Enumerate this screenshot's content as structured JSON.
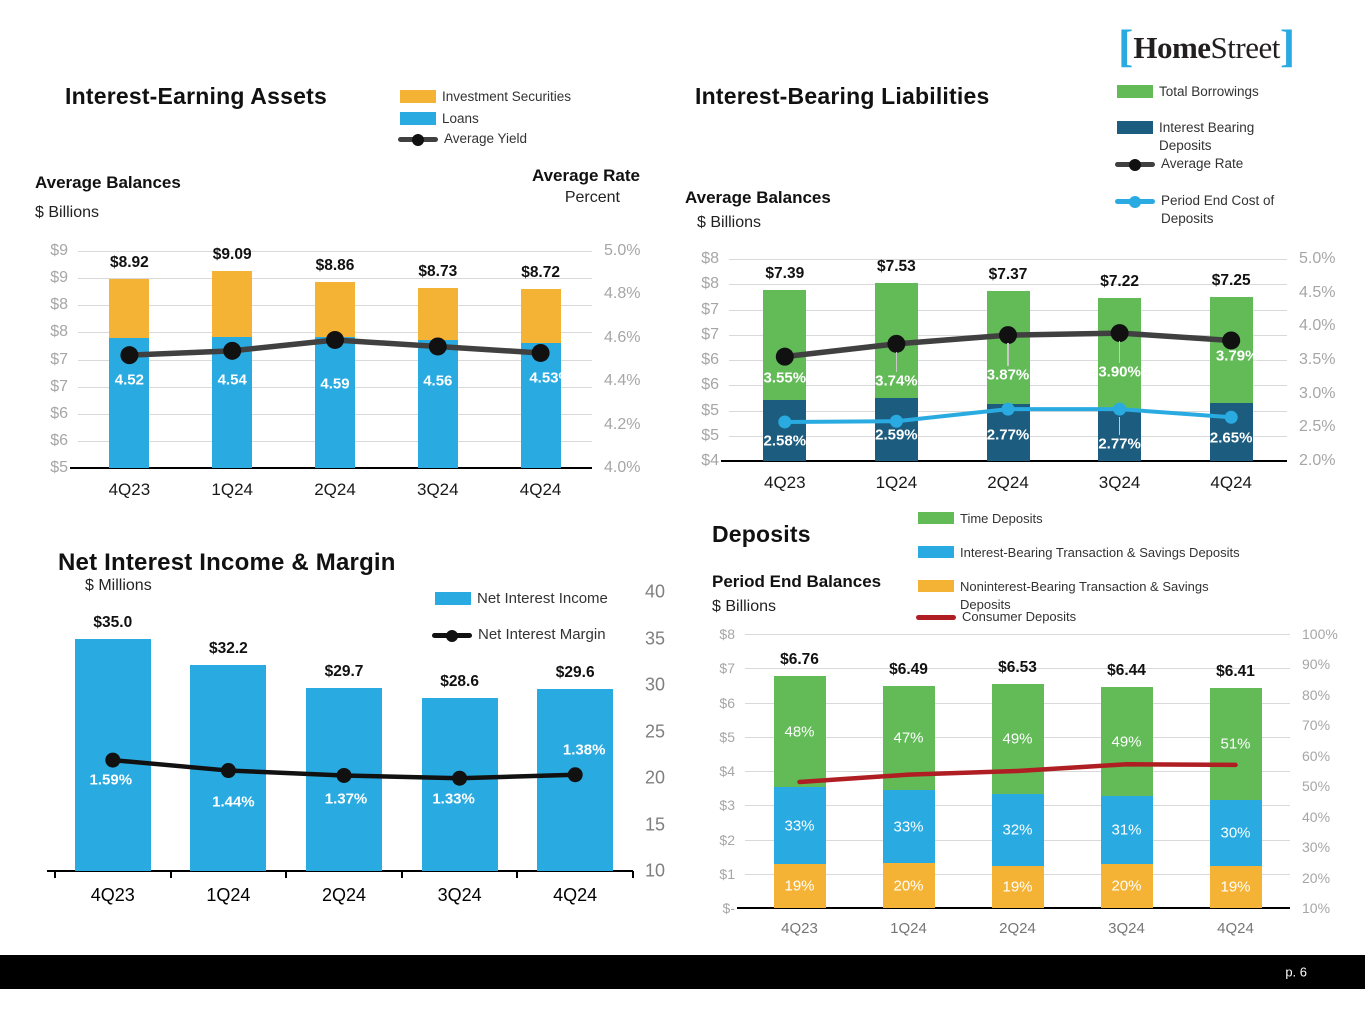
{
  "logo": {
    "left_bracket": "[",
    "name_bold": "Home",
    "name_light": "Street",
    "right_bracket": "]"
  },
  "footer": {
    "page_label": "p. 6"
  },
  "palette": {
    "blue": "#29ABE2",
    "yellow": "#F5B335",
    "green": "#62BB57",
    "navy": "#1C5C7F",
    "red": "#AF1E23",
    "line_dark": "#404040",
    "black": "#111111",
    "grid": "#D9D9D9",
    "axis_text": "#A6A6A6",
    "leader": "#C9C7C7",
    "gray_mid": "#767676"
  },
  "chart_data": [
    {
      "id": "assets",
      "type": "bar",
      "title": "Interest-Earning Assets",
      "balance_header": "Average Balances",
      "unit": "$ Billions",
      "right_header": "Average Rate",
      "right_header_sub": "Percent",
      "legend": [
        {
          "label": "Investment Securities",
          "swatch": "bar",
          "color": "yellow"
        },
        {
          "label": "Loans",
          "swatch": "bar",
          "color": "blue"
        },
        {
          "label": "Average Yield",
          "swatch": "line",
          "color": "line_dark",
          "dot": "black"
        }
      ],
      "categories": [
        "4Q23",
        "1Q24",
        "2Q24",
        "3Q24",
        "4Q24"
      ],
      "bar_axis": {
        "min": 5.0,
        "max": 9.5
      },
      "left_axis_labels": [
        "$9",
        "$9",
        "$8",
        "$8",
        "$7",
        "$7",
        "$6",
        "$6",
        "$5"
      ],
      "right_axis_labels": [
        "5.0%",
        "4.8%",
        "4.6%",
        "4.4%",
        "4.2%",
        "4.0%"
      ],
      "stack": [
        {
          "name": "Loans",
          "color": "blue",
          "tops": [
            7.7,
            7.72,
            7.72,
            7.65,
            7.6
          ]
        },
        {
          "name": "Investment Securities",
          "color": "yellow",
          "tops": [
            8.92,
            9.09,
            8.86,
            8.73,
            8.72
          ]
        }
      ],
      "totals_values": [
        8.92,
        9.09,
        8.86,
        8.73,
        8.72
      ],
      "totals_labels": [
        "$8.92",
        "$9.09",
        "$8.86",
        "$8.73",
        "$8.72"
      ],
      "lines": [
        {
          "name": "Average Yield",
          "color": "line_dark",
          "dot_color": "black",
          "width": 5.5,
          "dot_r": 9,
          "axis": {
            "min": 4.0,
            "max": 5.0
          },
          "values": [
            4.52,
            4.54,
            4.59,
            4.56,
            4.53
          ],
          "labels": [
            "4.52",
            "4.54",
            "4.59",
            "4.56",
            "4.53%"
          ],
          "label_dx": [
            0,
            0,
            0,
            0,
            10
          ],
          "label_dy": [
            25,
            29,
            44,
            35,
            25
          ],
          "leader": [
            false,
            false,
            false,
            false,
            false
          ]
        }
      ]
    },
    {
      "id": "liab",
      "type": "bar",
      "title": "Interest-Bearing Liabilities",
      "balance_header": "Average Balances",
      "unit": "$ Billions",
      "legend": [
        {
          "label": "Total Borrowings",
          "swatch": "bar",
          "color": "green"
        },
        {
          "label": "Interest Bearing Deposits",
          "swatch": "bar",
          "color": "navy"
        },
        {
          "label": "Average Rate",
          "swatch": "line",
          "color": "line_dark",
          "dot": "black"
        },
        {
          "label": "Period End Cost of Deposits",
          "swatch": "line",
          "color": "blue",
          "dot": "blue"
        }
      ],
      "categories": [
        "4Q23",
        "1Q24",
        "2Q24",
        "3Q24",
        "4Q24"
      ],
      "bar_axis": {
        "min": 4.0,
        "max": 8.0
      },
      "left_axis_labels": [
        "$8",
        "$8",
        "$7",
        "$7",
        "$6",
        "$6",
        "$5",
        "$5",
        "$4"
      ],
      "right_axis_labels": [
        "5.0%",
        "4.5%",
        "4.0%",
        "3.5%",
        "3.0%",
        "2.5%",
        "2.0%"
      ],
      "stack": [
        {
          "name": "Interest Bearing Deposits",
          "color": "navy",
          "tops": [
            5.2,
            5.24,
            5.12,
            5.01,
            5.14
          ]
        },
        {
          "name": "Total Borrowings",
          "color": "green",
          "tops": [
            7.39,
            7.53,
            7.37,
            7.22,
            7.25
          ]
        }
      ],
      "totals_values": [
        7.39,
        7.53,
        7.37,
        7.22,
        7.25
      ],
      "totals_labels": [
        "$7.39",
        "$7.53",
        "$7.37",
        "$7.22",
        "$7.25"
      ],
      "lines": [
        {
          "name": "Average Rate",
          "color": "line_dark",
          "dot_color": "black",
          "width": 5.5,
          "dot_r": 9,
          "axis": {
            "min": 2.0,
            "max": 5.0
          },
          "values": [
            3.55,
            3.74,
            3.87,
            3.9,
            3.79
          ],
          "labels": [
            "3.55%",
            "3.74%",
            "3.87%",
            "3.90%",
            "3.79%"
          ],
          "label_dx": [
            0,
            0,
            0,
            0,
            6
          ],
          "label_dy": [
            21,
            37,
            40,
            39,
            16
          ],
          "leader": [
            false,
            true,
            true,
            true,
            false
          ]
        },
        {
          "name": "Period End Cost of Deposits",
          "color": "blue",
          "dot_color": "blue",
          "width": 4,
          "dot_r": 6.5,
          "axis": {
            "min": 2.0,
            "max": 5.0
          },
          "values": [
            2.58,
            2.59,
            2.77,
            2.77,
            2.65
          ],
          "labels": [
            "2.58%",
            "2.59%",
            "2.77%",
            "2.77%",
            "2.65%"
          ],
          "label_dx": [
            0,
            0,
            0,
            0,
            0
          ],
          "label_dy": [
            19,
            14,
            26,
            35,
            21
          ],
          "leader": [
            false,
            false,
            false,
            true,
            false
          ]
        }
      ]
    },
    {
      "id": "nii",
      "type": "bar",
      "title": "Net Interest Income & Margin",
      "unit": "$ Millions",
      "legend": [
        {
          "label": "Net Interest Income",
          "swatch": "bar",
          "color": "blue"
        },
        {
          "label": "Net Interest Margin",
          "swatch": "line",
          "color": "black",
          "dot": "black"
        }
      ],
      "categories": [
        "4Q23",
        "1Q24",
        "2Q24",
        "3Q24",
        "4Q24"
      ],
      "bar_axis": {
        "min": 10,
        "max": 40
      },
      "left_axis_labels": [],
      "right_axis_labels": [
        "40",
        "35",
        "30",
        "25",
        "20",
        "15",
        "10"
      ],
      "stack": [
        {
          "name": "Net Interest Income",
          "color": "blue",
          "tops": [
            35.0,
            32.2,
            29.7,
            28.6,
            29.6
          ]
        }
      ],
      "totals_values": [
        35.0,
        32.2,
        29.7,
        28.6,
        29.6
      ],
      "totals_labels": [
        "$35.0",
        "$32.2",
        "$29.7",
        "$28.6",
        "$29.6"
      ],
      "lines": [
        {
          "name": "Net Interest Margin",
          "color": "black",
          "dot_color": "black",
          "width": 4.5,
          "dot_r": 7.5,
          "axis": {
            "min": 0,
            "max": 4
          },
          "values": [
            1.59,
            1.44,
            1.37,
            1.33,
            1.38
          ],
          "labels": [
            "1.59%",
            "1.44%",
            "1.37%",
            "1.33%",
            "1.38%"
          ],
          "label_dx": [
            -2,
            5,
            2,
            -6,
            9
          ],
          "label_dy": [
            20,
            31,
            24,
            21,
            -25
          ],
          "leader": [
            false,
            false,
            false,
            false,
            false
          ]
        }
      ]
    },
    {
      "id": "dep",
      "type": "bar",
      "title": "Deposits",
      "balance_header": "Period End Balances",
      "unit": "$ Billions",
      "legend": [
        {
          "label": "Time Deposits",
          "swatch": "bar",
          "color": "green"
        },
        {
          "label": "Interest-Bearing Transaction & Savings Deposits",
          "swatch": "bar",
          "color": "blue"
        },
        {
          "label": "Noninterest-Bearing Transaction & Savings Deposits",
          "swatch": "bar",
          "color": "yellow"
        },
        {
          "label": "Consumer Deposits",
          "swatch": "line",
          "color": "red"
        }
      ],
      "categories": [
        "4Q23",
        "1Q24",
        "2Q24",
        "3Q24",
        "4Q24"
      ],
      "bar_axis": {
        "min": 0,
        "max": 8
      },
      "left_axis_labels": [
        "$8",
        "$7",
        "$6",
        "$5",
        "$4",
        "$3",
        "$2",
        "$1",
        "$-"
      ],
      "right_axis_labels": [
        "100%",
        "90%",
        "80%",
        "70%",
        "60%",
        "50%",
        "40%",
        "30%",
        "20%",
        "10%"
      ],
      "stack": [
        {
          "name": "Noninterest-Bearing Transaction & Savings Deposits",
          "color": "yellow",
          "tops": [
            1.28,
            1.3,
            1.24,
            1.29,
            1.22
          ],
          "labels": [
            "19%",
            "20%",
            "19%",
            "20%",
            "19%"
          ]
        },
        {
          "name": "Interest-Bearing Transaction & Savings Deposits",
          "color": "blue",
          "tops": [
            3.52,
            3.44,
            3.33,
            3.28,
            3.14
          ],
          "labels": [
            "33%",
            "33%",
            "32%",
            "31%",
            "30%"
          ]
        },
        {
          "name": "Time Deposits",
          "color": "green",
          "tops": [
            6.76,
            6.49,
            6.53,
            6.44,
            6.41
          ],
          "labels": [
            "48%",
            "47%",
            "49%",
            "49%",
            "51%"
          ]
        }
      ],
      "totals_values": [
        6.76,
        6.49,
        6.53,
        6.44,
        6.41
      ],
      "totals_labels": [
        "$6.76",
        "$6.49",
        "$6.53",
        "$6.44",
        "$6.41"
      ],
      "lines": [
        {
          "name": "Consumer Deposits",
          "color": "red",
          "width": 4.5,
          "dot_r": 0,
          "axis": {
            "min": 10,
            "max": 100
          },
          "values": [
            51.4,
            53.8,
            55.0,
            57.2,
            57.0
          ],
          "labels": [],
          "label_dx": [],
          "label_dy": [],
          "leader": []
        }
      ]
    }
  ]
}
